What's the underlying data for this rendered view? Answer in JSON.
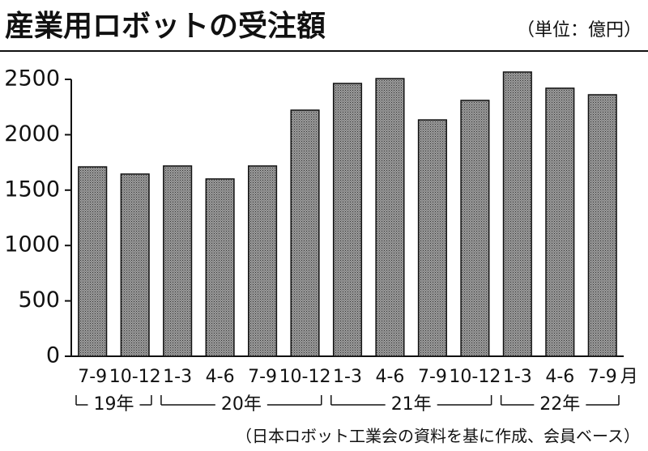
{
  "chart_data": {
    "type": "bar",
    "title": "産業用ロボットの受注額",
    "subtitle": "（単位：億円）",
    "categories": [
      "7-9",
      "10-12",
      "1-3",
      "4-6",
      "7-9",
      "10-12",
      "1-3",
      "4-6",
      "7-9",
      "10-12",
      "1-3",
      "4-6",
      "7-9"
    ],
    "month_unit": "月",
    "year_groups": [
      "19年",
      "20年",
      "21年",
      "22年"
    ],
    "values": [
      1710,
      1645,
      1718,
      1601,
      1718,
      2222,
      2463,
      2507,
      2134,
      2310,
      2566,
      2420,
      2361
    ],
    "color": "#9a9a9a",
    "ylim": [
      0,
      2500
    ],
    "yticks": [
      0,
      500,
      1000,
      1500,
      2000,
      2500
    ],
    "source": "（日本ロボット工業会の資料を基に作成、会員ベース）"
  }
}
